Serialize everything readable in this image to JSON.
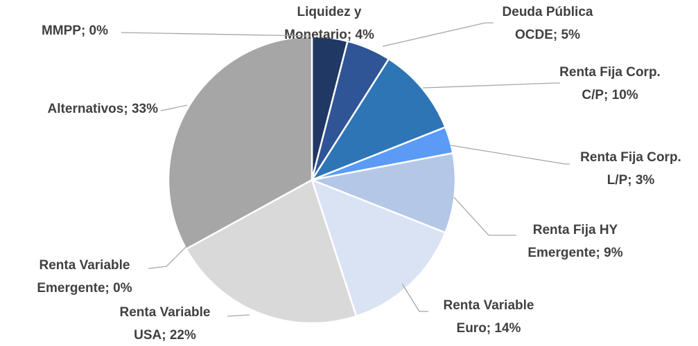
{
  "chart_data": {
    "type": "pie",
    "values": [
      4,
      5,
      10,
      3,
      9,
      14,
      22,
      0,
      33,
      0
    ],
    "value_labels": [
      [
        "Liquidez y",
        "Monetario; 4%"
      ],
      [
        "Deuda Pública",
        "OCDE; 5%"
      ],
      [
        "Renta Fija Corp.",
        "C/P; 10%"
      ],
      [
        "Renta Fija Corp.",
        "L/P; 3%"
      ],
      [
        "Renta Fija HY",
        "Emergente; 9%"
      ],
      [
        "Renta Variable",
        "Euro; 14%"
      ],
      [
        "Renta Variable",
        "USA; 22%"
      ],
      [
        "Renta Variable",
        "Emergente; 0%"
      ],
      [
        "Alternativos; 33%"
      ],
      [
        "MMPP; 0%"
      ]
    ],
    "colors": [
      "#203864",
      "#2f5597",
      "#2e75b6",
      "#5b9bf5",
      "#b4c7e7",
      "#dae3f3",
      "#d9d9d9",
      "#bfbfbf",
      "#a6a6a6",
      "#7f7f7f"
    ]
  }
}
